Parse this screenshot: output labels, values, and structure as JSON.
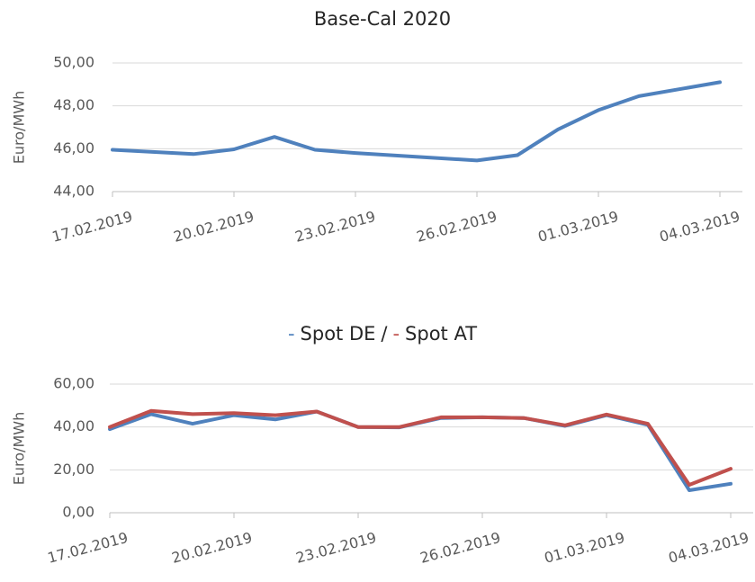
{
  "chart_data": [
    {
      "type": "line",
      "title": "Base-Cal 2020",
      "ylabel": "Euro/MWh",
      "x": [
        "17.02.2019",
        "19.02.2019",
        "20.02.2019",
        "21.02.2019",
        "22.02.2019",
        "23.02.2019",
        "26.02.2019",
        "27.02.2019",
        "28.02.2019",
        "01.03.2019",
        "02.03.2019",
        "04.03.2019"
      ],
      "series": [
        {
          "name": "Base-Cal 2020",
          "color": "#4f81bd",
          "values": [
            45.95,
            45.75,
            45.97,
            46.55,
            45.95,
            45.8,
            45.45,
            45.7,
            46.9,
            47.8,
            48.45,
            49.1
          ]
        }
      ],
      "xlim": [
        "17.02.2019",
        "04.03.2019"
      ],
      "xticks": [
        "17.02.2019",
        "20.02.2019",
        "23.02.2019",
        "26.02.2019",
        "01.03.2019",
        "04.03.2019"
      ],
      "ylim": [
        44,
        50
      ],
      "yticks": [
        {
          "value": 44,
          "label": "44,00"
        },
        {
          "value": 46,
          "label": "46,00"
        },
        {
          "value": 48,
          "label": "48,00"
        },
        {
          "value": 50,
          "label": "50,00"
        }
      ]
    },
    {
      "type": "line",
      "ylabel": "Euro/MWh",
      "legend": {
        "marker": "-",
        "separator": "/"
      },
      "x": [
        "17.02.2019",
        "18.02.2019",
        "19.02.2019",
        "20.02.2019",
        "21.02.2019",
        "22.02.2019",
        "23.02.2019",
        "24.02.2019",
        "25.02.2019",
        "26.02.2019",
        "27.02.2019",
        "28.02.2019",
        "01.03.2019",
        "02.03.2019",
        "03.03.2019",
        "04.03.2019"
      ],
      "series": [
        {
          "name": "Spot DE",
          "color": "#4f81bd",
          "values": [
            39,
            46,
            41.5,
            45.5,
            43.5,
            47.2,
            40,
            39.8,
            44.2,
            44.5,
            44.2,
            40.5,
            45.5,
            41,
            10.5,
            13.5
          ]
        },
        {
          "name": "Spot AT",
          "color": "#c0504d",
          "values": [
            40,
            47.5,
            46,
            46.5,
            45.5,
            47.2,
            40,
            40,
            44.5,
            44.5,
            44.2,
            40.8,
            45.8,
            41.5,
            13,
            20.5
          ]
        }
      ],
      "xlim": [
        "17.02.2019",
        "04.03.2019"
      ],
      "xticks": [
        "17.02.2019",
        "20.02.2019",
        "23.02.2019",
        "26.02.2019",
        "01.03.2019",
        "04.03.2019"
      ],
      "ylim": [
        0,
        60
      ],
      "yticks": [
        {
          "value": 0,
          "label": "0,00"
        },
        {
          "value": 20,
          "label": "20,00"
        },
        {
          "value": 40,
          "label": "40,00"
        },
        {
          "value": 60,
          "label": "60,00"
        }
      ]
    }
  ]
}
